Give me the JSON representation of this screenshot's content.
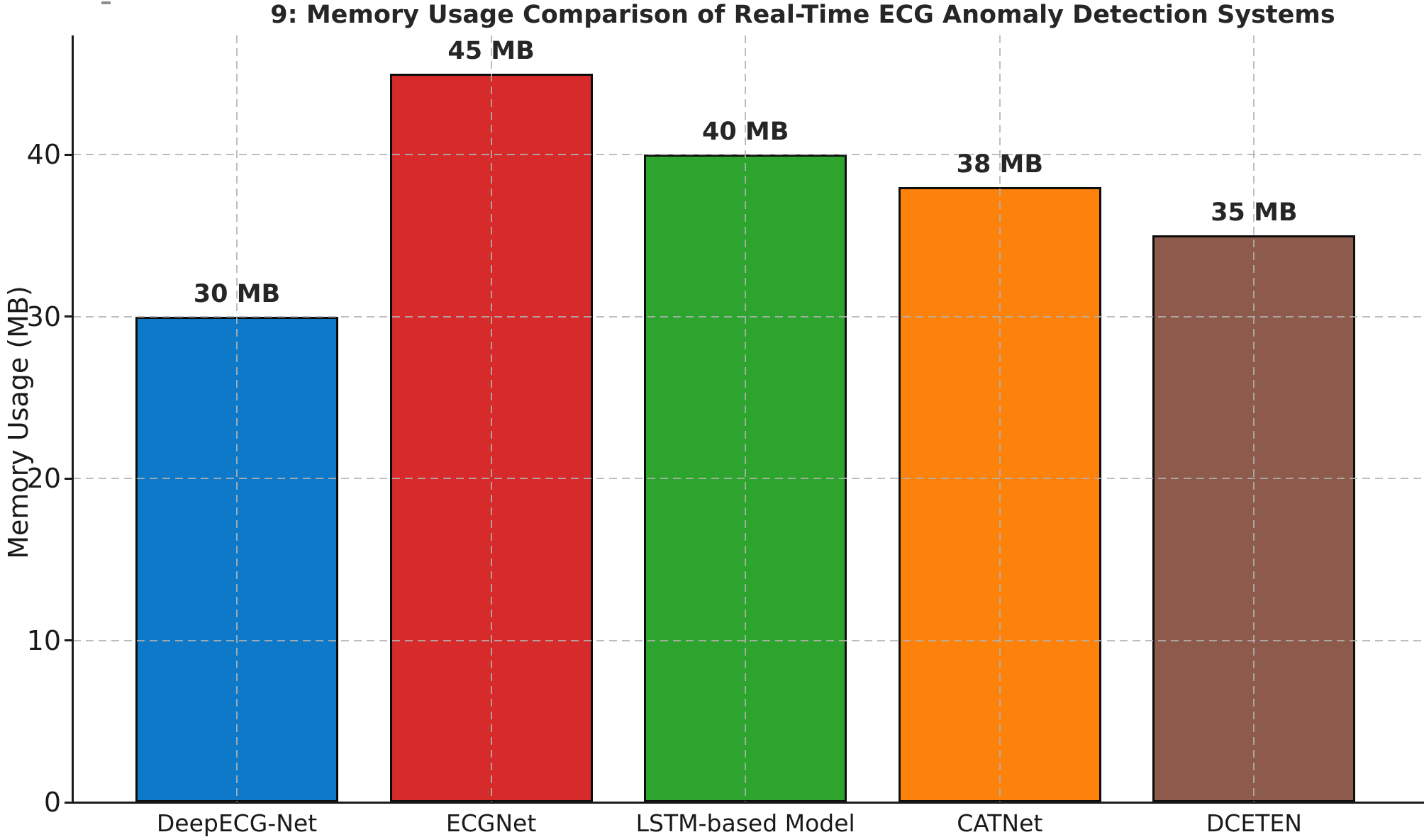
{
  "chart_data": {
    "type": "bar",
    "title": "9: Memory Usage Comparison of Real-Time ECG Anomaly Detection Systems",
    "ylabel": "Memory Usage (MB)",
    "xlabel": "",
    "categories": [
      "DeepECG-Net",
      "ECGNet",
      "LSTM-based Model",
      "CATNet",
      "DCETEN"
    ],
    "values": [
      30,
      45,
      40,
      38,
      35
    ],
    "bar_labels": [
      "30 MB",
      "45 MB",
      "40 MB",
      "38 MB",
      "35 MB"
    ],
    "bar_colors": [
      "#0d79c8",
      "#d62a2b",
      "#2da42d",
      "#fd820c",
      "#8d5a4c"
    ],
    "bar_edge_color": "#0d0d0d",
    "yticks": [
      0,
      10,
      20,
      30,
      40
    ],
    "ylim": [
      0,
      47.4
    ],
    "grid": {
      "horizontal": true,
      "vertical": true,
      "style": "dashed",
      "color": "#b2b2b2"
    },
    "legend": "none"
  }
}
